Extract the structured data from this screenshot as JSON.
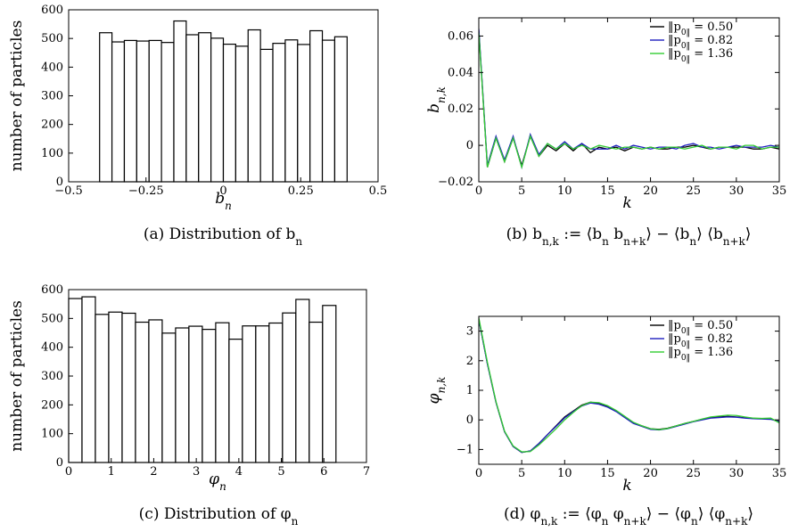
{
  "chart_data": [
    {
      "type": "bar",
      "caption": "(a) Distribution of b_n",
      "xlabel": "b_n",
      "ylabel": "number of particles",
      "xlim": [
        -0.5,
        0.5
      ],
      "ylim": [
        0,
        600
      ],
      "xticks": [
        "−0.5",
        "−0.25",
        "0",
        "0.25",
        "0.5"
      ],
      "yticks": [
        "0",
        "100",
        "200",
        "300",
        "400",
        "500",
        "600"
      ],
      "bin_edges": [
        -0.4,
        -0.36,
        -0.32,
        -0.28,
        -0.24,
        -0.2,
        -0.16,
        -0.12,
        -0.08,
        -0.04,
        0.0,
        0.04,
        0.08,
        0.12,
        0.16,
        0.2,
        0.24,
        0.28,
        0.32,
        0.36,
        0.4
      ],
      "values": [
        520,
        488,
        493,
        491,
        493,
        486,
        561,
        513,
        520,
        501,
        480,
        473,
        530,
        462,
        483,
        495,
        479,
        527,
        494,
        506
      ]
    },
    {
      "type": "line",
      "caption": "(b) b_{n,k} := ⟨b_n b_{n+k}⟩ − ⟨b_n⟩ ⟨b_{n+k}⟩",
      "xlabel": "k",
      "ylabel": "b_{n,k}",
      "xlim": [
        0,
        35
      ],
      "ylim": [
        -0.02,
        0.07
      ],
      "xticks": [
        "0",
        "5",
        "10",
        "15",
        "20",
        "25",
        "30",
        "35"
      ],
      "yticks": [
        "−0.02",
        "0",
        "0.02",
        "0.04",
        "0.06"
      ],
      "legend_position": "top-right",
      "x": [
        0,
        1,
        2,
        3,
        4,
        5,
        6,
        7,
        8,
        9,
        10,
        11,
        12,
        13,
        14,
        15,
        16,
        17,
        18,
        19,
        20,
        21,
        22,
        23,
        24,
        25,
        26,
        27,
        28,
        29,
        30,
        31,
        32,
        33,
        34,
        35
      ],
      "series": [
        {
          "name": "‖p0‖ = 0.50",
          "color": "#000000",
          "values": [
            0.063,
            -0.012,
            0.004,
            -0.009,
            0.004,
            -0.011,
            0.005,
            -0.006,
            0.0,
            -0.003,
            0.001,
            -0.003,
            0.001,
            -0.004,
            -0.001,
            -0.002,
            -0.001,
            -0.003,
            -0.001,
            -0.002,
            -0.001,
            -0.002,
            -0.002,
            -0.001,
            -0.001,
            0.0,
            -0.001,
            -0.002,
            -0.001,
            -0.001,
            -0.001,
            -0.001,
            -0.002,
            -0.002,
            -0.001,
            -0.002
          ]
        },
        {
          "name": "‖p0‖ = 0.82",
          "color": "#1f1fbf",
          "values": [
            0.064,
            -0.011,
            0.005,
            -0.008,
            0.005,
            -0.012,
            0.006,
            -0.005,
            0.001,
            -0.002,
            0.002,
            -0.002,
            0.001,
            -0.002,
            -0.002,
            -0.002,
            0.0,
            -0.002,
            0.0,
            -0.001,
            -0.002,
            -0.001,
            -0.001,
            -0.002,
            0.0,
            0.001,
            -0.001,
            -0.001,
            -0.002,
            -0.001,
            0.0,
            -0.001,
            -0.001,
            -0.001,
            0.0,
            -0.001
          ]
        },
        {
          "name": "‖p0‖ = 1.36",
          "color": "#33cc33",
          "values": [
            0.062,
            -0.012,
            0.004,
            -0.009,
            0.004,
            -0.012,
            0.005,
            -0.006,
            0.001,
            -0.002,
            0.001,
            -0.002,
            0.0,
            -0.002,
            0.0,
            -0.001,
            -0.002,
            -0.001,
            -0.001,
            -0.002,
            -0.001,
            -0.002,
            -0.001,
            -0.001,
            -0.002,
            -0.001,
            0.0,
            -0.002,
            -0.001,
            -0.001,
            -0.002,
            0.0,
            0.0,
            -0.002,
            -0.001,
            -0.001
          ]
        }
      ]
    },
    {
      "type": "bar",
      "caption": "(c) Distribution of φ_n",
      "xlabel": "φ_n",
      "ylabel": "number of particles",
      "xlim": [
        0,
        7
      ],
      "ylim": [
        0,
        600
      ],
      "xticks": [
        "0",
        "1",
        "2",
        "3",
        "4",
        "5",
        "6",
        "7"
      ],
      "yticks": [
        "0",
        "100",
        "200",
        "300",
        "400",
        "500",
        "600"
      ],
      "bin_edges": [
        0.0,
        0.314,
        0.628,
        0.942,
        1.257,
        1.571,
        1.885,
        2.199,
        2.513,
        2.827,
        3.142,
        3.456,
        3.77,
        4.084,
        4.398,
        4.712,
        5.027,
        5.341,
        5.655,
        5.969,
        6.283
      ],
      "values": [
        569,
        575,
        514,
        522,
        518,
        487,
        495,
        449,
        467,
        473,
        462,
        485,
        428,
        474,
        474,
        484,
        519,
        566,
        487,
        545
      ]
    },
    {
      "type": "line",
      "caption": "(d) φ_{n,k} := ⟨φ_n φ_{n+k}⟩ − ⟨φ_n⟩ ⟨φ_{n+k}⟩",
      "xlabel": "k",
      "ylabel": "φ_{n,k}",
      "xlim": [
        0,
        35
      ],
      "ylim": [
        -1.5,
        3.5
      ],
      "xticks": [
        "0",
        "5",
        "10",
        "15",
        "20",
        "25",
        "30",
        "35"
      ],
      "yticks": [
        "−1",
        "0",
        "1",
        "2",
        "3"
      ],
      "legend_position": "top-right",
      "x": [
        0,
        1,
        2,
        3,
        4,
        5,
        6,
        7,
        8,
        9,
        10,
        11,
        12,
        13,
        14,
        15,
        16,
        17,
        18,
        19,
        20,
        21,
        22,
        23,
        24,
        25,
        26,
        27,
        28,
        29,
        30,
        31,
        32,
        33,
        34,
        35
      ],
      "series": [
        {
          "name": "‖p0‖ = 0.50",
          "color": "#000000",
          "values": [
            3.4,
            1.9,
            0.6,
            -0.4,
            -0.9,
            -1.1,
            -1.05,
            -0.8,
            -0.5,
            -0.2,
            0.1,
            0.3,
            0.5,
            0.6,
            0.55,
            0.45,
            0.3,
            0.1,
            -0.1,
            -0.2,
            -0.3,
            -0.32,
            -0.28,
            -0.2,
            -0.12,
            -0.05,
            0.02,
            0.08,
            0.1,
            0.12,
            0.1,
            0.07,
            0.05,
            0.04,
            0.03,
            -0.05
          ]
        },
        {
          "name": "‖p0‖ = 0.82",
          "color": "#1f1fbf",
          "values": [
            3.4,
            1.9,
            0.6,
            -0.4,
            -0.9,
            -1.1,
            -1.05,
            -0.8,
            -0.5,
            -0.22,
            0.07,
            0.28,
            0.47,
            0.57,
            0.53,
            0.43,
            0.28,
            0.08,
            -0.12,
            -0.22,
            -0.32,
            -0.34,
            -0.3,
            -0.22,
            -0.14,
            -0.06,
            0.0,
            0.06,
            0.08,
            0.1,
            0.09,
            0.06,
            0.04,
            0.03,
            0.02,
            -0.06
          ]
        },
        {
          "name": "‖p0‖ = 1.36",
          "color": "#33cc33",
          "values": [
            3.45,
            1.95,
            0.62,
            -0.38,
            -0.88,
            -1.08,
            -1.07,
            -0.85,
            -0.58,
            -0.3,
            0.0,
            0.25,
            0.48,
            0.6,
            0.58,
            0.48,
            0.32,
            0.12,
            -0.08,
            -0.2,
            -0.3,
            -0.33,
            -0.29,
            -0.2,
            -0.12,
            -0.05,
            0.03,
            0.1,
            0.13,
            0.16,
            0.15,
            0.1,
            0.06,
            0.05,
            0.06,
            -0.1
          ]
        }
      ]
    }
  ]
}
